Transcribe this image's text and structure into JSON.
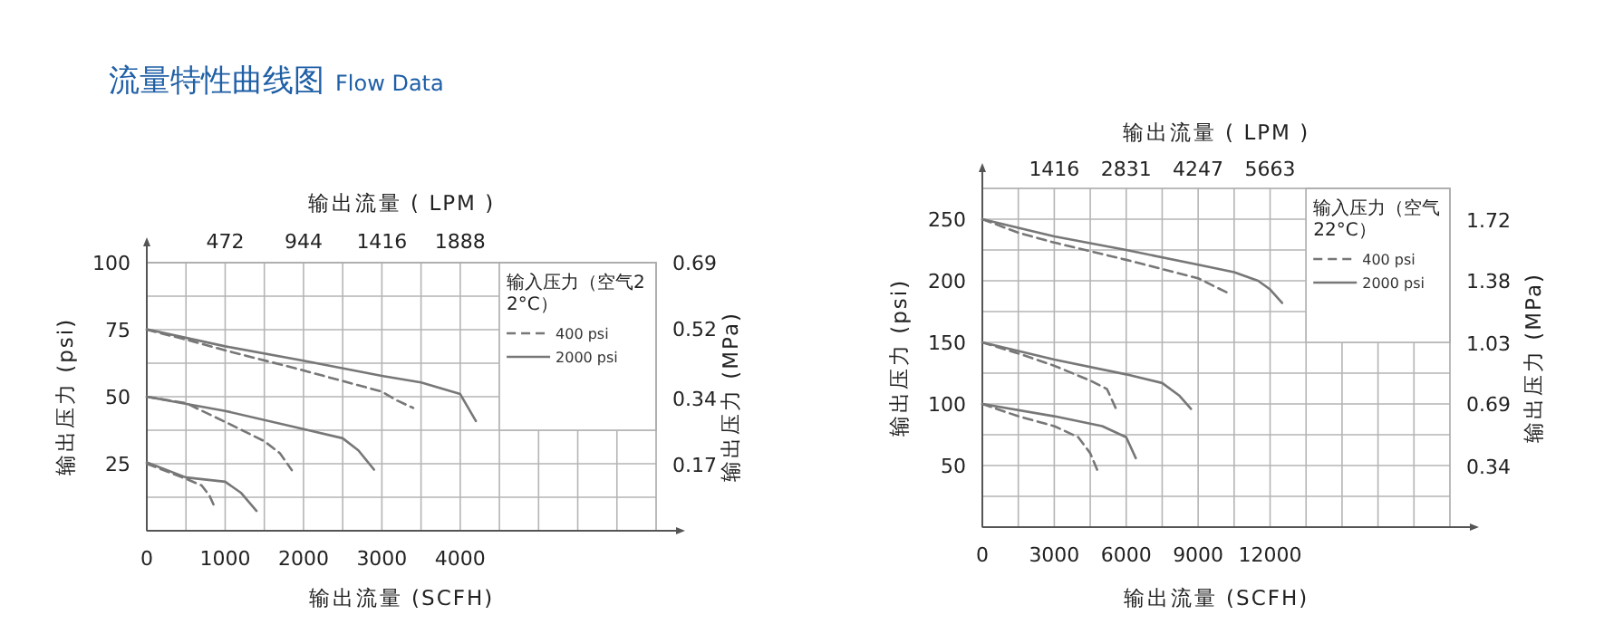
{
  "chart_data": [
    {
      "type": "line",
      "title": "流量特性曲线图",
      "subtitle": "Flow Data",
      "xlabel": "输出流量 (SCFH)",
      "x2label": "输出流量 ( LPM )",
      "ylabel": "输出压力 (psi)",
      "y2label": "输出压力 (MPa)",
      "legend_title": "输入压力（空气22°C）",
      "legend": "top right",
      "grid": true,
      "xlim": [
        0,
        6500
      ],
      "ylim": [
        0,
        100
      ],
      "x2lim": [
        0,
        3068
      ],
      "y2lim": [
        0,
        0.69
      ],
      "xticks": [
        0,
        {
          "value": 500,
          "label": null
        },
        1000,
        {
          "value": 1500,
          "label": null
        },
        2000,
        {
          "value": 2500,
          "label": null
        },
        3000,
        {
          "value": 3500,
          "label": null
        },
        4000,
        {
          "value": 4500,
          "label": null
        },
        {
          "value": 5000,
          "label": null
        },
        {
          "value": 5500,
          "label": null
        },
        {
          "value": 6000,
          "label": null
        }
      ],
      "yticks": [
        {
          "value": 0,
          "label": null
        },
        {
          "value": 12.5,
          "label": null
        },
        25,
        {
          "value": 37.5,
          "label": null
        },
        50,
        {
          "value": 62.5,
          "label": null
        },
        75,
        {
          "value": 87.5,
          "label": null
        },
        100
      ],
      "x2ticks": [
        472,
        944,
        1416,
        1888
      ],
      "y2ticks": [
        0.17,
        0.34,
        0.52,
        0.69
      ],
      "series": [
        {
          "name": "400 psi",
          "color": "#777777",
          "line_style": "dashed",
          "x": [
            0,
            500,
            1000,
            2000,
            3000,
            3200,
            3400
          ],
          "values": [
            75,
            71.3,
            67.3,
            59.8,
            51.9,
            48.5,
            45.8
          ]
        },
        {
          "name": "2000 psi",
          "color": "#777777",
          "line_style": "solid",
          "x": [
            0,
            1000,
            2000,
            3000,
            3500,
            4000,
            4200
          ],
          "values": [
            75.2,
            68.8,
            63.4,
            57.8,
            55.3,
            51,
            40.9
          ]
        },
        {
          "color": "#777777",
          "line_style": "dashed",
          "x": [
            0,
            500,
            1000,
            1500,
            1700,
            1850
          ],
          "values": [
            50,
            47.6,
            40.6,
            33.4,
            28.9,
            22.6
          ]
        },
        {
          "color": "#777777",
          "line_style": "solid",
          "x": [
            0,
            1000,
            2000,
            2500,
            2700,
            2900
          ],
          "values": [
            50,
            44.7,
            37.9,
            34.5,
            30,
            22.8
          ]
        },
        {
          "color": "#777777",
          "line_style": "dashed",
          "x": [
            0,
            500,
            700,
            800,
            870
          ],
          "values": [
            25,
            19.4,
            16.9,
            13.1,
            8.6
          ]
        },
        {
          "color": "#777777",
          "line_style": "solid",
          "x": [
            0,
            500,
            1000,
            1200,
            1400
          ],
          "values": [
            25.5,
            19.9,
            18.3,
            14.2,
            7.4
          ]
        }
      ]
    },
    {
      "type": "line",
      "xlabel": "输出流量 (SCFH)",
      "x2label": "输出流量 ( LPM )",
      "ylabel": "输出压力 (psi)",
      "y2label": "输出压力 (MPa)",
      "legend_title": "输入压力（空气22°C）",
      "legend": "top right",
      "grid": true,
      "xlim": [
        0,
        19500
      ],
      "ylim": [
        0,
        275
      ],
      "x2lim": [
        0,
        9203
      ],
      "y2lim": [
        0,
        1.9
      ],
      "xticks": [
        0,
        {
          "value": 1500,
          "label": null
        },
        3000,
        {
          "value": 4500,
          "label": null
        },
        6000,
        {
          "value": 7500,
          "label": null
        },
        9000,
        {
          "value": 10500,
          "label": null
        },
        12000,
        {
          "value": 13500,
          "label": null
        },
        {
          "value": 15000,
          "label": null
        },
        {
          "value": 16500,
          "label": null
        },
        {
          "value": 18000,
          "label": null
        }
      ],
      "yticks": [
        {
          "value": 0,
          "label": null
        },
        {
          "value": 25,
          "label": null
        },
        50,
        {
          "value": 75,
          "label": null
        },
        100,
        {
          "value": 125,
          "label": null
        },
        150,
        {
          "value": 175,
          "label": null
        },
        200,
        {
          "value": 225,
          "label": null
        },
        250
      ],
      "x2ticks": [
        1416,
        2831,
        4247,
        5663
      ],
      "y2ticks": [
        0.34,
        0.69,
        1.03,
        1.38,
        1.72
      ],
      "series": [
        {
          "name": "400 psi",
          "color": "#777777",
          "line_style": "dashed",
          "x": [
            0,
            1500,
            3000,
            6000,
            9000,
            10250
          ],
          "values": [
            250,
            239,
            231,
            217,
            202,
            190
          ]
        },
        {
          "name": "2000 psi",
          "color": "#777777",
          "line_style": "solid",
          "x": [
            0,
            3000,
            6000,
            9000,
            10500,
            11500,
            12000,
            12500
          ],
          "values": [
            250,
            236,
            225,
            213,
            207,
            200,
            193,
            182
          ]
        },
        {
          "color": "#777777",
          "line_style": "dashed",
          "x": [
            0,
            1500,
            3000,
            4500,
            5200,
            5600
          ],
          "values": [
            150,
            141,
            131,
            119,
            112,
            95
          ]
        },
        {
          "color": "#777777",
          "line_style": "solid",
          "x": [
            0,
            3000,
            6000,
            7500,
            8200,
            8700
          ],
          "values": [
            150,
            136,
            124,
            117,
            107,
            96
          ]
        },
        {
          "color": "#777777",
          "line_style": "dashed",
          "x": [
            0,
            1500,
            3000,
            4000,
            4500,
            4800
          ],
          "values": [
            100,
            90,
            82,
            73,
            60,
            46
          ]
        },
        {
          "color": "#777777",
          "line_style": "solid",
          "x": [
            0,
            3000,
            5000,
            6000,
            6400
          ],
          "values": [
            100,
            90,
            82,
            73,
            56
          ]
        }
      ]
    }
  ]
}
